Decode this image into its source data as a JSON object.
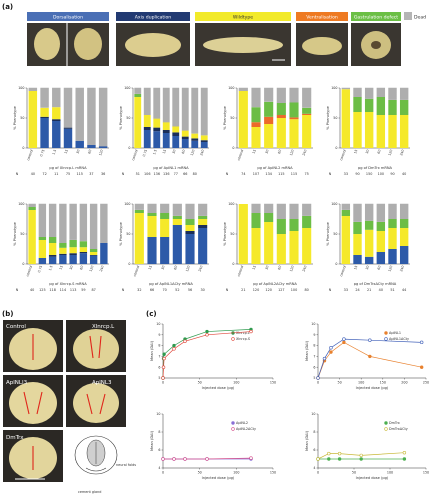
{
  "panel_labels": {
    "a": "(a)",
    "b": "(b)",
    "c": "(c)"
  },
  "phenotype_headers": [
    {
      "label": "Dorsalisation",
      "color": "#4a6fb5"
    },
    {
      "label": "Axis duplication",
      "color": "#223a72"
    },
    {
      "label": "Wildtype",
      "color": "#f2ea2a"
    },
    {
      "label": "Ventralisation",
      "color": "#ee7a22"
    },
    {
      "label": "Gastrulation defect",
      "color": "#6bbf45"
    }
  ],
  "dead_label": "Dead",
  "colors": {
    "dorsal": "#2d5aa8",
    "axis": "#1b2f5a",
    "wt": "#f5e92a",
    "ventral": "#ec6b2a",
    "gast": "#6cbd45",
    "dead": "#b5b5b5",
    "grey_hatch": "#8c8c8c"
  },
  "n_label": "N",
  "b_labels": [
    "Control",
    "Xlnrcp.L",
    "AplNLI3",
    "AplNL3",
    "DmTrx",
    "neural folds",
    "cement gland"
  ],
  "chart_data": [
    {
      "type": "bar",
      "stacked": true,
      "ylabel": "% Phenotype",
      "xlabel": "pg of Xlnrcp.L mRNA",
      "ylim": [
        0,
        100
      ],
      "categories": [
        "control",
        "0.75",
        "1.5",
        "15",
        "30",
        "60",
        "120"
      ],
      "n": [
        "40",
        "72",
        "11",
        "75",
        "115",
        "37",
        "36"
      ],
      "series": [
        {
          "key": "dorsal",
          "values": [
            0,
            50,
            45,
            32,
            12,
            5,
            3
          ]
        },
        {
          "key": "axis",
          "values": [
            0,
            2,
            3,
            2,
            0,
            0,
            0
          ]
        },
        {
          "key": "wt",
          "values": [
            95,
            15,
            20,
            0,
            0,
            0,
            0
          ]
        },
        {
          "key": "ventral",
          "values": [
            0,
            0,
            0,
            0,
            0,
            0,
            0
          ]
        },
        {
          "key": "gast",
          "values": [
            0,
            0,
            0,
            0,
            0,
            0,
            0
          ]
        },
        {
          "key": "dead",
          "values": [
            5,
            33,
            32,
            66,
            88,
            95,
            97
          ]
        }
      ]
    },
    {
      "type": "bar",
      "stacked": true,
      "ylabel": "% Phenotype",
      "xlabel": "pg of AplNL1 mRNA",
      "ylim": [
        0,
        100
      ],
      "categories": [
        "control",
        "0.75",
        "1.5",
        "15",
        "30",
        "60",
        "120",
        "240"
      ],
      "n": [
        "51",
        "106",
        "136",
        "136",
        "77",
        "66",
        "80",
        ""
      ],
      "series": [
        {
          "key": "dorsal",
          "values": [
            0,
            30,
            28,
            25,
            20,
            15,
            12,
            10
          ]
        },
        {
          "key": "axis",
          "values": [
            0,
            5,
            6,
            5,
            6,
            4,
            4,
            3
          ]
        },
        {
          "key": "wt",
          "values": [
            85,
            20,
            15,
            13,
            10,
            10,
            8,
            8
          ]
        },
        {
          "key": "ventral",
          "values": [
            0,
            0,
            0,
            0,
            0,
            0,
            0,
            0
          ]
        },
        {
          "key": "gast",
          "values": [
            5,
            0,
            0,
            0,
            0,
            0,
            0,
            0
          ]
        },
        {
          "key": "dead",
          "values": [
            10,
            45,
            51,
            57,
            64,
            71,
            76,
            79
          ]
        }
      ]
    },
    {
      "type": "bar",
      "stacked": true,
      "ylabel": "% Phenotype",
      "xlabel": "pg of AplNL2 mRNA",
      "ylim": [
        0,
        100
      ],
      "categories": [
        "control",
        "15",
        "30",
        "60",
        "120",
        "240"
      ],
      "n": [
        "74",
        "107",
        "134",
        "115",
        "115",
        "75"
      ],
      "series": [
        {
          "key": "dorsal",
          "values": [
            0,
            0,
            0,
            0,
            0,
            0
          ]
        },
        {
          "key": "axis",
          "values": [
            0,
            0,
            0,
            0,
            0,
            0
          ]
        },
        {
          "key": "wt",
          "values": [
            95,
            35,
            40,
            50,
            48,
            55
          ]
        },
        {
          "key": "ventral",
          "values": [
            0,
            8,
            12,
            5,
            3,
            2
          ]
        },
        {
          "key": "gast",
          "values": [
            0,
            25,
            25,
            20,
            25,
            10
          ]
        },
        {
          "key": "dead",
          "values": [
            5,
            32,
            23,
            25,
            24,
            33
          ]
        }
      ]
    },
    {
      "type": "bar",
      "stacked": true,
      "ylabel": "% Phenotype",
      "xlabel": "pg of DmTrx mRNA",
      "ylim": [
        0,
        100
      ],
      "categories": [
        "control",
        "15",
        "30",
        "60",
        "120",
        "240"
      ],
      "n": [
        "33",
        "90",
        "150",
        "100",
        "90",
        "40"
      ],
      "series": [
        {
          "key": "dorsal",
          "values": [
            0,
            0,
            0,
            0,
            0,
            0
          ]
        },
        {
          "key": "axis",
          "values": [
            0,
            0,
            0,
            0,
            0,
            0
          ]
        },
        {
          "key": "wt",
          "values": [
            98,
            60,
            60,
            55,
            55,
            55
          ]
        },
        {
          "key": "ventral",
          "values": [
            0,
            0,
            0,
            0,
            0,
            0
          ]
        },
        {
          "key": "gast",
          "values": [
            0,
            25,
            22,
            30,
            25,
            25
          ]
        },
        {
          "key": "dead",
          "values": [
            2,
            15,
            18,
            15,
            20,
            20
          ]
        }
      ]
    },
    {
      "type": "bar",
      "stacked": true,
      "ylabel": "% Phenotype",
      "xlabel": "pg of Xlnrcp.S mRNA",
      "ylim": [
        0,
        100
      ],
      "categories": [
        "control",
        "0.75",
        "1.5",
        "15",
        "30",
        "60",
        "120",
        "240"
      ],
      "n": [
        "40",
        "125",
        "118",
        "114",
        "113",
        "59",
        "87",
        ""
      ],
      "series": [
        {
          "key": "dorsal",
          "values": [
            0,
            10,
            12,
            15,
            15,
            18,
            14,
            35
          ]
        },
        {
          "key": "axis",
          "values": [
            0,
            0,
            3,
            2,
            3,
            2,
            1,
            0
          ]
        },
        {
          "key": "wt",
          "values": [
            90,
            30,
            20,
            10,
            10,
            8,
            5,
            0
          ]
        },
        {
          "key": "ventral",
          "values": [
            0,
            0,
            0,
            0,
            0,
            0,
            0,
            0
          ]
        },
        {
          "key": "gast",
          "values": [
            5,
            5,
            10,
            8,
            12,
            10,
            5,
            0
          ]
        },
        {
          "key": "dead",
          "values": [
            5,
            55,
            55,
            65,
            60,
            62,
            75,
            65
          ]
        }
      ]
    },
    {
      "type": "bar",
      "stacked": true,
      "ylabel": "% Phenotype",
      "xlabel": "pg of AplNL1ΔCty mRNA",
      "ylim": [
        0,
        100
      ],
      "categories": [
        "control",
        "15",
        "30",
        "60",
        "120",
        "240"
      ],
      "n": [
        "32",
        "66",
        "70",
        "52",
        "56",
        "30"
      ],
      "series": [
        {
          "key": "dorsal",
          "values": [
            0,
            45,
            45,
            65,
            50,
            60
          ]
        },
        {
          "key": "axis",
          "values": [
            0,
            0,
            0,
            0,
            5,
            5
          ]
        },
        {
          "key": "wt",
          "values": [
            85,
            35,
            30,
            10,
            10,
            10
          ]
        },
        {
          "key": "ventral",
          "values": [
            0,
            0,
            0,
            0,
            0,
            0
          ]
        },
        {
          "key": "gast",
          "values": [
            5,
            5,
            10,
            5,
            10,
            5
          ]
        },
        {
          "key": "dead",
          "values": [
            10,
            15,
            15,
            20,
            25,
            20
          ]
        }
      ]
    },
    {
      "type": "bar",
      "stacked": true,
      "ylabel": "% Phenotype",
      "xlabel": "pg of AplNL2ΔCty mRNA",
      "ylim": [
        0,
        100
      ],
      "categories": [
        "control",
        "15",
        "30",
        "60",
        "120",
        "240"
      ],
      "n": [
        "21",
        "120",
        "120",
        "127",
        "100",
        "80"
      ],
      "series": [
        {
          "key": "dorsal",
          "values": [
            0,
            0,
            0,
            0,
            0,
            0
          ]
        },
        {
          "key": "axis",
          "values": [
            0,
            0,
            0,
            0,
            0,
            0
          ]
        },
        {
          "key": "wt",
          "values": [
            100,
            60,
            70,
            50,
            55,
            60
          ]
        },
        {
          "key": "ventral",
          "values": [
            0,
            0,
            0,
            0,
            0,
            0
          ]
        },
        {
          "key": "gast",
          "values": [
            0,
            25,
            15,
            25,
            20,
            20
          ]
        },
        {
          "key": "dead",
          "values": [
            0,
            15,
            15,
            25,
            25,
            20
          ]
        }
      ]
    },
    {
      "type": "bar",
      "stacked": true,
      "ylabel": "% Phenotype",
      "xlabel": "pg of DmTrxΔCty mRNA",
      "ylim": [
        0,
        100
      ],
      "categories": [
        "control",
        "15",
        "30",
        "60",
        "120",
        "240"
      ],
      "n": [
        "33",
        "24",
        "21",
        "40",
        "51",
        "44"
      ],
      "series": [
        {
          "key": "dorsal",
          "values": [
            0,
            15,
            12,
            20,
            25,
            30
          ]
        },
        {
          "key": "axis",
          "values": [
            0,
            0,
            0,
            0,
            0,
            0
          ]
        },
        {
          "key": "wt",
          "values": [
            80,
            35,
            45,
            35,
            35,
            30
          ]
        },
        {
          "key": "ventral",
          "values": [
            0,
            0,
            0,
            0,
            0,
            0
          ]
        },
        {
          "key": "gast",
          "values": [
            10,
            20,
            15,
            15,
            15,
            15
          ]
        },
        {
          "key": "dead",
          "values": [
            10,
            30,
            28,
            30,
            25,
            25
          ]
        }
      ]
    },
    {
      "type": "line",
      "ylabel": "Mean (DAI)",
      "xlabel": "Injected dose (pg)",
      "xlim": [
        0,
        150
      ],
      "ylim": [
        5,
        10
      ],
      "xticks": [
        0,
        50,
        100,
        150
      ],
      "yticks": [
        5,
        6,
        7,
        8,
        9,
        10
      ],
      "series": [
        {
          "name": "Xlnrcp.L",
          "color": "#2e9b4e",
          "x": [
            0,
            0.75,
            1.5,
            15,
            30,
            60,
            120
          ],
          "y": [
            5.0,
            6.8,
            7.2,
            8.0,
            8.6,
            9.3,
            9.5
          ]
        },
        {
          "name": "Xlnrcp.S",
          "color": "#e0483c",
          "x": [
            0,
            0.75,
            1.5,
            15,
            30,
            60,
            120
          ],
          "y": [
            5.0,
            6.0,
            6.8,
            7.7,
            8.4,
            9.0,
            9.3
          ]
        }
      ]
    },
    {
      "type": "line",
      "ylabel": "Mean (DAI)",
      "xlabel": "Injected dose (pg)",
      "xlim": [
        0,
        250
      ],
      "ylim": [
        5,
        10
      ],
      "xticks": [
        0,
        50,
        100,
        150,
        200,
        250
      ],
      "yticks": [
        5,
        6,
        7,
        8,
        9,
        10
      ],
      "series": [
        {
          "name": "AplNL1",
          "color": "#e8812e",
          "x": [
            0,
            15,
            30,
            60,
            120,
            240
          ],
          "y": [
            5.0,
            6.6,
            7.4,
            8.3,
            7.0,
            6.0
          ]
        },
        {
          "name": "AplNL1ΔCty",
          "color": "#3f5fb8",
          "x": [
            0,
            15,
            30,
            60,
            120,
            240
          ],
          "y": [
            5.0,
            6.8,
            7.8,
            8.6,
            8.5,
            8.3
          ]
        }
      ]
    },
    {
      "type": "line",
      "ylabel": "Mean (DAI)",
      "xlabel": "Injected dose (pg)",
      "xlim": [
        0,
        150
      ],
      "ylim": [
        4,
        10
      ],
      "xticks": [
        0,
        50,
        100,
        150
      ],
      "yticks": [
        4,
        6,
        8,
        10
      ],
      "series": [
        {
          "name": "AplNL2",
          "color": "#8a6fd6",
          "x": [
            0,
            15,
            30,
            60,
            120
          ],
          "y": [
            5.0,
            5.0,
            5.0,
            5.0,
            5.0
          ]
        },
        {
          "name": "AplNL2ΔCty",
          "color": "#d44f8a",
          "x": [
            0,
            15,
            30,
            60,
            120
          ],
          "y": [
            5.0,
            5.0,
            5.0,
            5.0,
            5.1
          ]
        }
      ]
    },
    {
      "type": "line",
      "ylabel": "Mean (DAI)",
      "xlabel": "Injected dose (pg)",
      "xlim": [
        0,
        150
      ],
      "ylim": [
        4,
        10
      ],
      "xticks": [
        0,
        50,
        100,
        150
      ],
      "yticks": [
        4,
        6,
        8,
        10
      ],
      "series": [
        {
          "name": "DmTrx",
          "color": "#4caf50",
          "x": [
            0,
            15,
            30,
            60,
            120
          ],
          "y": [
            5.0,
            5.0,
            5.0,
            5.0,
            5.0
          ]
        },
        {
          "name": "DmTrxΔCty",
          "color": "#c9b93a",
          "x": [
            0,
            15,
            30,
            60,
            120
          ],
          "y": [
            5.0,
            5.6,
            5.6,
            5.4,
            5.7
          ]
        }
      ]
    }
  ]
}
